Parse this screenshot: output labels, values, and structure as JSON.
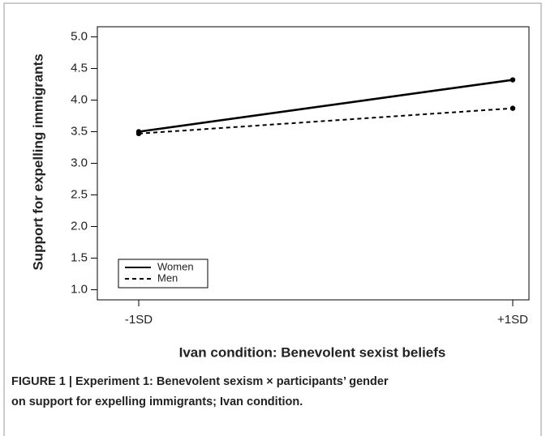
{
  "chart_data": {
    "type": "line",
    "ylabel": "Support for expelling immigrants",
    "xlabel": "Ivan condition: Benevolent sexist beliefs",
    "categories": [
      "-1SD",
      "+1SD"
    ],
    "series": [
      {
        "name": "Women",
        "color": "#000000",
        "dash": "solid",
        "values": [
          3.5,
          4.32
        ]
      },
      {
        "name": "Men",
        "color": "#000000",
        "dash": "dashed",
        "values": [
          3.47,
          3.87
        ]
      }
    ],
    "ylim": [
      0.84,
      5.16
    ],
    "yticks": [
      {
        "value": 1,
        "label": "1.0"
      },
      1.5,
      {
        "value": 2,
        "label": "2.0"
      },
      2.5,
      {
        "value": 3,
        "label": "3.0"
      },
      3.5,
      {
        "value": 4,
        "label": "4.0"
      },
      4.5,
      {
        "value": 5,
        "label": "5.0"
      }
    ],
    "legend": "bottom-left",
    "caption": [
      "FIGURE 1 | Experiment 1: Benevolent sexism × participants’ gender",
      "on support for expelling immigrants; Ivan condition."
    ]
  }
}
